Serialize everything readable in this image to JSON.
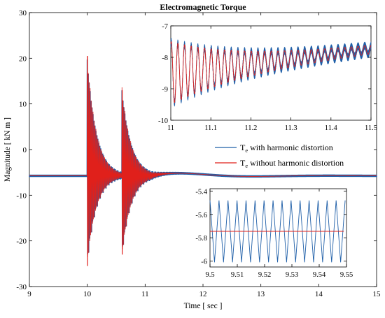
{
  "chart_data": [
    {
      "type": "line",
      "title": "Electromagnetic Torque",
      "xlabel": "Time  [ sec ]",
      "ylabel": "Magnitude  [ kN m ]",
      "xlim": [
        9,
        15
      ],
      "ylim": [
        -30,
        30
      ],
      "xticks": [
        9,
        10,
        11,
        12,
        13,
        14,
        15
      ],
      "yticks": [
        -30,
        -20,
        -10,
        0,
        10,
        20,
        30
      ],
      "legend": {
        "placement": "right",
        "entries": [
          {
            "main": "T",
            "sub": "e",
            "rest": " with harmonic distortion",
            "color": "#1f5fa8"
          },
          {
            "main": "T",
            "sub": "e",
            "rest": " without harmonic distortion",
            "color": "#e0201b"
          }
        ]
      },
      "series": [
        {
          "color": "#1f5fa8",
          "steady_value": -5.75,
          "harmonic_ripple_amplitude": 0.25,
          "transients": [
            {
              "t": 10.0,
              "max": 20.5,
              "min": -25.5
            },
            {
              "t": 10.6,
              "max": 13,
              "min": -23
            }
          ],
          "recovery_peak": {
            "t": 11.75,
            "value": -4.7
          }
        },
        {
          "color": "#e0201b",
          "steady_value": -5.75,
          "transients": [
            {
              "t": 10.0,
              "max": 20.5,
              "min": -25.5
            },
            {
              "t": 10.6,
              "max": 13,
              "min": -23
            }
          ]
        }
      ]
    },
    {
      "type": "line",
      "xlim": [
        11,
        11.5
      ],
      "ylim": [
        -10,
        -7
      ],
      "xticks": [
        11,
        11.1,
        11.2,
        11.3,
        11.4,
        11.5
      ],
      "yticks": [
        -10,
        -9,
        -8,
        -7
      ],
      "xtick_labels": [
        "11",
        "11.1",
        "11.2",
        "11.3",
        "11.4",
        "11.5"
      ],
      "ytick_labels": [
        "-10",
        "-9",
        "-8",
        "-7"
      ],
      "series": [
        {
          "color": "#1f5fa8",
          "start_value": -8.5,
          "end_value": -7.75,
          "start_amplitude": 1.0,
          "end_amplitude": 0.12,
          "cycles": 30,
          "ripple_amplitude": 0.12
        },
        {
          "color": "#e0201b",
          "start_value": -8.5,
          "end_value": -7.75,
          "start_amplitude": 1.0,
          "end_amplitude": 0.12,
          "cycles": 30
        }
      ]
    },
    {
      "type": "line",
      "xlim": [
        9.5,
        9.55
      ],
      "ylim": [
        -6.05,
        -5.38
      ],
      "xticks": [
        9.5,
        9.51,
        9.52,
        9.53,
        9.54,
        9.55
      ],
      "yticks": [
        -6,
        -5.8,
        -5.6,
        -5.4
      ],
      "xtick_labels": [
        "9.5",
        "9.51",
        "9.52",
        "9.53",
        "9.54",
        "9.55"
      ],
      "ytick_labels": [
        "-6",
        "-5.8",
        "-5.6",
        "-5.4"
      ],
      "series": [
        {
          "color": "#1f5fa8",
          "mean": -5.745,
          "amplitude": 0.265,
          "period": 0.0033,
          "x_end": 9.5495
        },
        {
          "color": "#e0201b",
          "value": -5.745,
          "x_end": 9.549
        }
      ]
    }
  ]
}
